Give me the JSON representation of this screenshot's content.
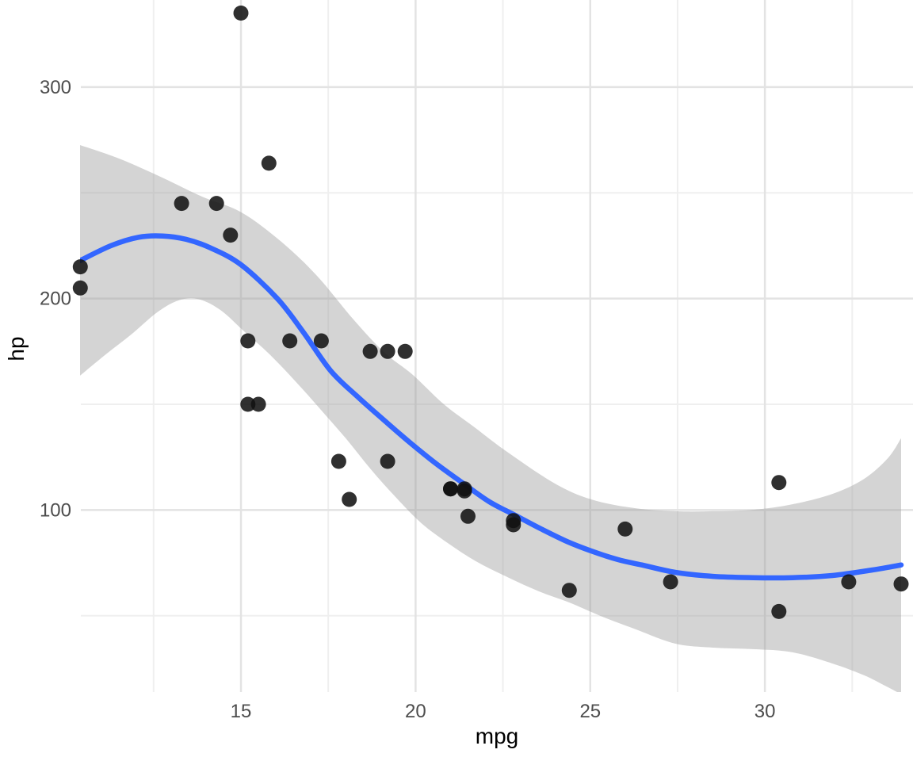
{
  "chart_data": {
    "type": "scatter",
    "title": "",
    "xlabel": "mpg",
    "ylabel": "hp",
    "legend": "none",
    "grid": "on",
    "xlim": [
      10.416,
      34.24
    ],
    "ylim": [
      13.9,
      341.2
    ],
    "x_ticks": [
      15,
      20,
      25,
      30
    ],
    "x_minor_ticks": [
      12.5,
      17.5,
      22.5,
      27.5,
      32.5
    ],
    "y_ticks": [
      100,
      200,
      300
    ],
    "y_minor_ticks": [
      50,
      150,
      250,
      350
    ],
    "points": [
      [
        21.0,
        110
      ],
      [
        21.0,
        110
      ],
      [
        22.8,
        93
      ],
      [
        21.4,
        110
      ],
      [
        18.7,
        175
      ],
      [
        18.1,
        105
      ],
      [
        14.3,
        245
      ],
      [
        24.4,
        62
      ],
      [
        22.8,
        95
      ],
      [
        19.2,
        123
      ],
      [
        17.8,
        123
      ],
      [
        16.4,
        180
      ],
      [
        17.3,
        180
      ],
      [
        15.2,
        180
      ],
      [
        10.4,
        205
      ],
      [
        10.4,
        215
      ],
      [
        14.7,
        230
      ],
      [
        32.4,
        66
      ],
      [
        30.4,
        52
      ],
      [
        33.9,
        65
      ],
      [
        21.5,
        97
      ],
      [
        15.5,
        150
      ],
      [
        15.2,
        150
      ],
      [
        13.3,
        245
      ],
      [
        19.2,
        175
      ],
      [
        27.3,
        66
      ],
      [
        26.0,
        91
      ],
      [
        30.4,
        113
      ],
      [
        15.8,
        264
      ],
      [
        19.7,
        175
      ],
      [
        15.0,
        335
      ],
      [
        21.4,
        109
      ]
    ],
    "smooth_line": [
      [
        10.4,
        218.0
      ],
      [
        11.28,
        225.0
      ],
      [
        12.07,
        229.0
      ],
      [
        12.76,
        229.6
      ],
      [
        13.43,
        228.0
      ],
      [
        14.12,
        224.0
      ],
      [
        15.0,
        216.0
      ],
      [
        16.04,
        200.0
      ],
      [
        16.79,
        184.0
      ],
      [
        17.56,
        166.0
      ],
      [
        18.31,
        154.0
      ],
      [
        19.06,
        143.0
      ],
      [
        19.83,
        132.0
      ],
      [
        20.58,
        122.0
      ],
      [
        21.33,
        113.0
      ],
      [
        22.1,
        104.0
      ],
      [
        22.85,
        97.5
      ],
      [
        23.6,
        91.0
      ],
      [
        24.35,
        85.0
      ],
      [
        25.03,
        80.6
      ],
      [
        25.8,
        76.5
      ],
      [
        26.48,
        74.0
      ],
      [
        27.43,
        70.5
      ],
      [
        28.52,
        68.6
      ],
      [
        29.66,
        68.0
      ],
      [
        30.79,
        68.0
      ],
      [
        31.93,
        69.0
      ],
      [
        33.06,
        71.6
      ],
      [
        33.9,
        74.0
      ]
    ],
    "ribbon_upper": [
      [
        10.39,
        272.6
      ],
      [
        11.51,
        266.2
      ],
      [
        12.75,
        257.2
      ],
      [
        13.89,
        248.2
      ],
      [
        15.02,
        240.7
      ],
      [
        16.16,
        226.8
      ],
      [
        17.18,
        210.7
      ],
      [
        18.2,
        190.5
      ],
      [
        19.11,
        174.4
      ],
      [
        19.9,
        164.2
      ],
      [
        20.81,
        150.0
      ],
      [
        21.72,
        138.7
      ],
      [
        22.62,
        127.5
      ],
      [
        23.99,
        112.5
      ],
      [
        25.03,
        105.0
      ],
      [
        26.25,
        100.9
      ],
      [
        27.43,
        99.4
      ],
      [
        28.52,
        99.4
      ],
      [
        29.66,
        100.1
      ],
      [
        30.79,
        102.7
      ],
      [
        31.93,
        107.6
      ],
      [
        32.84,
        114.7
      ],
      [
        33.52,
        124.5
      ],
      [
        33.9,
        133.9
      ]
    ],
    "ribbon_lower": [
      [
        10.39,
        163.5
      ],
      [
        11.16,
        174.0
      ],
      [
        11.91,
        183.7
      ],
      [
        12.6,
        193.5
      ],
      [
        13.21,
        199.1
      ],
      [
        13.77,
        199.8
      ],
      [
        14.41,
        194.6
      ],
      [
        15.09,
        184.5
      ],
      [
        15.82,
        173.6
      ],
      [
        16.54,
        161.2
      ],
      [
        17.27,
        147.7
      ],
      [
        18.0,
        133.9
      ],
      [
        18.72,
        119.2
      ],
      [
        19.45,
        105.7
      ],
      [
        20.17,
        93.7
      ],
      [
        20.92,
        84.4
      ],
      [
        21.72,
        75.8
      ],
      [
        22.62,
        68.3
      ],
      [
        23.53,
        61.5
      ],
      [
        24.39,
        56.3
      ],
      [
        25.35,
        49.5
      ],
      [
        26.25,
        43.9
      ],
      [
        27.43,
        36.8
      ],
      [
        28.52,
        34.9
      ],
      [
        29.66,
        34.2
      ],
      [
        30.79,
        32.7
      ],
      [
        31.93,
        27.4
      ],
      [
        32.84,
        21.8
      ],
      [
        33.47,
        16.6
      ],
      [
        33.9,
        12.9
      ]
    ],
    "colors": {
      "background": "#ffffff",
      "point": "#111111",
      "smooth_line": "#3366FF",
      "ribbon": "#999999",
      "grid_major": "#e3e3e3",
      "grid_minor": "#efefef",
      "tick_label": "#4d4d4d",
      "axis_title": "#000000"
    }
  }
}
